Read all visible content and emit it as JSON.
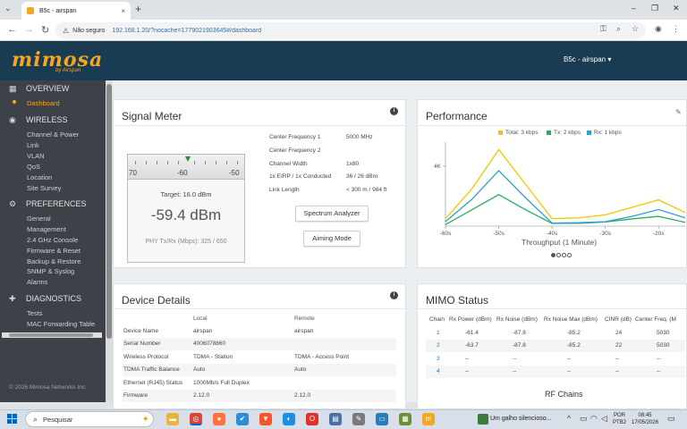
{
  "browser": {
    "tab_title": "B5c - airspan",
    "tab_close": "×",
    "new_tab": "+",
    "insecure_label": "Não seguro",
    "url": "192.168.1.20/?nocache=1779021903645#/dashboard",
    "back": "←",
    "forward": "→",
    "reload": "↻",
    "win_min": "–",
    "win_max": "❐",
    "win_close": "✕"
  },
  "header": {
    "logo": "mimosa",
    "logo_sub": "by Airspan",
    "device_menu": "B5c - airspan ▾"
  },
  "sidebar": {
    "sections": [
      {
        "label": "OVERVIEW",
        "icon": "overview-icon"
      },
      {
        "label": "WIRELESS",
        "icon": "wireless-icon"
      },
      {
        "label": "PREFERENCES",
        "icon": "preferences-icon"
      },
      {
        "label": "DIAGNOSTICS",
        "icon": "diagnostics-icon"
      }
    ],
    "overview_items": [
      "Dashboard"
    ],
    "wireless_items": [
      "Channel & Power",
      "Link",
      "VLAN",
      "QoS",
      "Location",
      "Site Survey"
    ],
    "preferences_items": [
      "General",
      "Management",
      "2.4 GHz Console",
      "Firmware & Reset",
      "Backup & Restore",
      "SNMP & Syslog",
      "Alarms"
    ],
    "diagnostics_items": [
      "Tests",
      "MAC Forwarding Table"
    ],
    "copyright": "© 2026 Mimosa Networks Inc."
  },
  "signal_meter": {
    "title": "Signal Meter",
    "scale_labels": [
      "70",
      "-60",
      "-50"
    ],
    "target": "Target:  16.0 dBm",
    "value": "-59.4  dBm",
    "phy": "PHY Tx/Rx (Mbps):  325  /  650",
    "fields": [
      {
        "label": "Center Frequency 1",
        "value": "5000 MHz"
      },
      {
        "label": "Center Frequency 2",
        "value": ""
      },
      {
        "label": "Channel Width",
        "value": "1x80"
      },
      {
        "label": "1x EIRP / 1x Conducted",
        "value": "36 / 26 dBm"
      },
      {
        "label": "Link Length",
        "value": "< 300 m / 984 ft"
      }
    ],
    "spectrum_button": "Spectrum Analyzer",
    "aiming_button": "Aiming Mode"
  },
  "performance": {
    "title": "Performance",
    "legend": [
      {
        "label": "Total: 3 kbps",
        "color": "#f2c500"
      },
      {
        "label": "Tx: 2 kbps",
        "color": "#27ae60"
      },
      {
        "label": "Rx: 1 kbps",
        "color": "#2e9fd0"
      }
    ],
    "caption": "Throughput (1 Minute)"
  },
  "chart_data": {
    "type": "line",
    "title": "",
    "xlabel": "Throughput (1 Minute)",
    "ylabel": "",
    "x": [
      -60,
      -55,
      -50,
      -45,
      -40,
      -35,
      -30,
      -25,
      -20,
      -15
    ],
    "x_tick_labels": [
      "-60s",
      "-50s",
      "-40s",
      "-30s",
      "-20s"
    ],
    "y_tick_labels": [
      "4K"
    ],
    "ylim": [
      0,
      5600
    ],
    "series": [
      {
        "name": "Total: 3 kbps",
        "color": "#f2c500",
        "values": [
          500,
          2500,
          5100,
          2800,
          500,
          550,
          750,
          1250,
          1750,
          900
        ]
      },
      {
        "name": "Tx: 2 kbps",
        "color": "#27ae60",
        "values": [
          100,
          1100,
          2100,
          1100,
          180,
          190,
          280,
          480,
          650,
          250
        ]
      },
      {
        "name": "Rx: 1 kbps",
        "color": "#2e9fd0",
        "values": [
          300,
          1800,
          3700,
          1900,
          200,
          230,
          300,
          650,
          1100,
          550
        ]
      }
    ],
    "pager": "●○○○"
  },
  "device_details": {
    "title": "Device Details",
    "headers": [
      "",
      "Local",
      "Remote"
    ],
    "rows": [
      [
        "Device Name",
        "airspan",
        "airspan"
      ],
      [
        "Serial Number",
        "4006078860",
        ""
      ],
      [
        "Wireless Protocol",
        "TDMA - Station",
        "TDMA - Access Point"
      ],
      [
        "TDMA Traffic Balance",
        "Auto",
        "Auto"
      ],
      [
        "Ethernet (RJ45) Status",
        "1000Mb/s Full Duplex",
        ""
      ],
      [
        "Firmware",
        "2.12.0",
        "2.12.0"
      ]
    ]
  },
  "mimo": {
    "title": "MIMO Status",
    "headers": [
      "Chain",
      "Rx Power (dBm)",
      "Rx Noise (dBm)",
      "Rx Noise Max (dBm)",
      "CINR (dB)",
      "Center Freq. (M"
    ],
    "rows": [
      [
        "1",
        "-61.4",
        "-87.8",
        "-85.2",
        "24",
        "5030"
      ],
      [
        "2",
        "-63.7",
        "-87.8",
        "-85.2",
        "22",
        "5030"
      ],
      [
        "3",
        "--",
        "--",
        "--",
        "--",
        "--"
      ],
      [
        "4",
        "--",
        "--",
        "--",
        "--",
        "--"
      ]
    ],
    "rf_chains": "RF Chains"
  },
  "taskbar": {
    "search": "Pesquisar",
    "news": "Um galho silencioso...",
    "lang_top": "POR",
    "lang_bottom": "PTB2",
    "time": "08:45",
    "date": "17/05/2026"
  }
}
